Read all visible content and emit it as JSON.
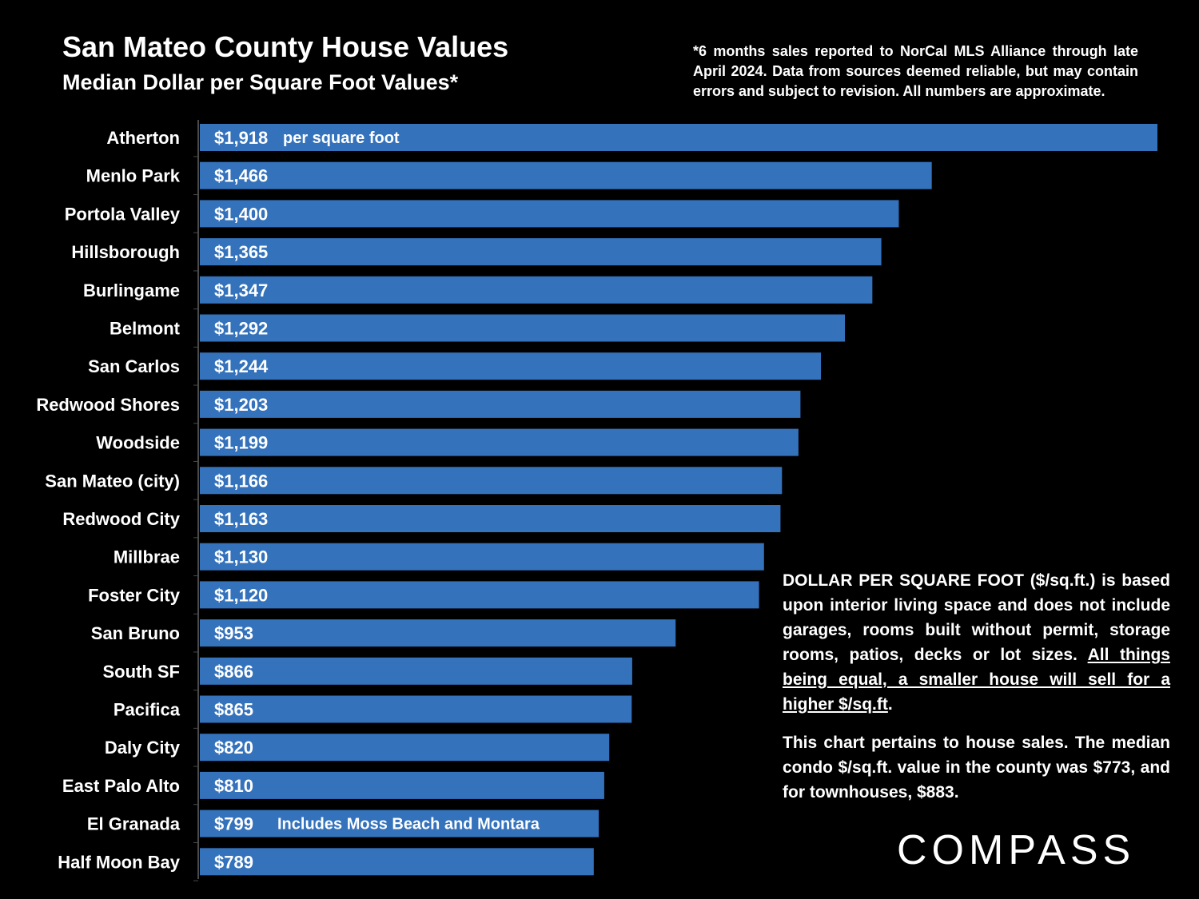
{
  "header": {
    "title": "San Mateo County House Values",
    "subtitle": "Median Dollar per Square Foot Values*",
    "footnote": "*6 months sales reported to NorCal MLS Alliance through late April 2024. Data from sources deemed reliable, but may contain errors and subject to revision. All numbers are approximate."
  },
  "chart_data": {
    "type": "bar",
    "orientation": "horizontal",
    "title": "San Mateo County House Values",
    "subtitle": "Median Dollar per Square Foot Values*",
    "xlabel": "",
    "ylabel": "",
    "xlim": [
      0,
      1918
    ],
    "grid": false,
    "bar_color": "#3472bb",
    "categories": [
      "Atherton",
      "Menlo Park",
      "Portola Valley",
      "Hillsborough",
      "Burlingame",
      "Belmont",
      "San Carlos",
      "Redwood Shores",
      "Woodside",
      "San Mateo (city)",
      "Redwood City",
      "Millbrae",
      "Foster City",
      "San Bruno",
      "South SF",
      "Pacifica",
      "Daly City",
      "East Palo Alto",
      "El Granada",
      "Half Moon Bay"
    ],
    "values": [
      1918,
      1466,
      1400,
      1365,
      1347,
      1292,
      1244,
      1203,
      1199,
      1166,
      1163,
      1130,
      1120,
      953,
      866,
      865,
      820,
      810,
      799,
      789
    ],
    "value_labels": [
      "$1,918",
      "$1,466",
      "$1,400",
      "$1,365",
      "$1,347",
      "$1,292",
      "$1,244",
      "$1,203",
      "$1,199",
      "$1,166",
      "$1,163",
      "$1,130",
      "$1,120",
      "$953",
      "$866",
      "$865",
      "$820",
      "$810",
      "$799",
      "$789"
    ],
    "annotations": [
      {
        "category": "Atherton",
        "text": "per square foot"
      },
      {
        "category": "El Granada",
        "text": "Includes Moss Beach and Montara"
      }
    ]
  },
  "side_note": {
    "p1_text": "DOLLAR PER SQUARE FOOT ($/sq.ft.) is based upon interior living space and does not include garages, rooms built without permit, storage rooms, patios, decks or lot sizes. ",
    "p1_underlined": "All things being equal, a smaller house will sell for a higher $/sq.ft",
    "p1_end": ".",
    "p2": "This chart pertains to house sales. The median condo $/sq.ft. value in the county was $773, and for townhouses, $883."
  },
  "logo": {
    "text": "COMPASS"
  }
}
